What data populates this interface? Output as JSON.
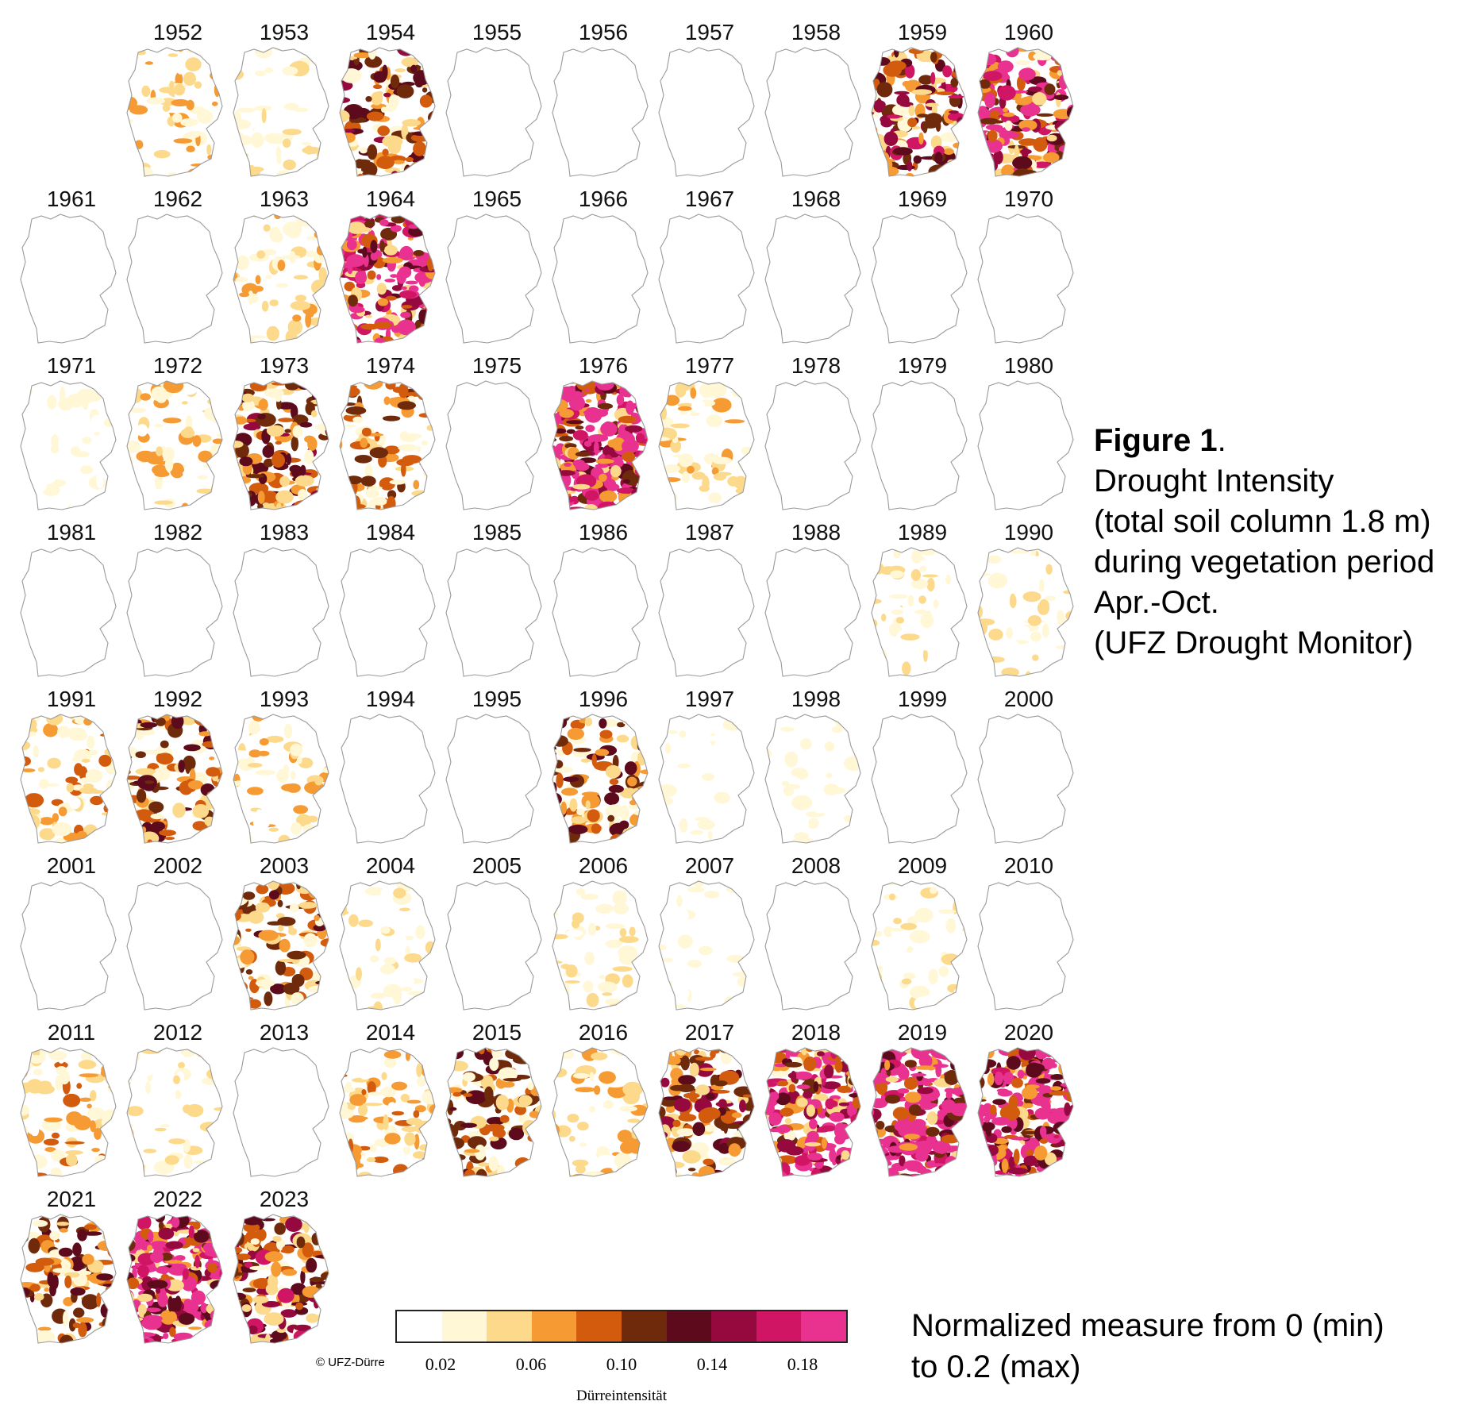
{
  "caption": {
    "figure_label": "Figure 1",
    "figure_label_punct": ".",
    "lines": [
      "Drought Intensity",
      "(total soil column 1.8 m)",
      "during vegetation period",
      "Apr.-Oct.",
      "(UFZ Drought Monitor)"
    ]
  },
  "legend_note": {
    "line1": "Normalized measure from 0 (min)",
    "line2": "to 0.2 (max)"
  },
  "credit": "© UFZ-Dürreintensität",
  "colorbar": {
    "title": "Dürreintensität",
    "ticks": [
      "0.02",
      "0.06",
      "0.10",
      "0.14",
      "0.18"
    ],
    "bin_colors": [
      "#ffffff",
      "#fff7d6",
      "#fcd98b",
      "#f69a34",
      "#d25b0e",
      "#6e2a0b",
      "#5c0a1c",
      "#96093f",
      "#cf1563",
      "#e9328f"
    ]
  },
  "chart_data": {
    "type": "heatmap",
    "title": "Figure 1. Drought Intensity (total soil column 1.8 m) during vegetation period Apr.-Oct. (UFZ Drought Monitor)",
    "scale": {
      "min": 0,
      "max": 0.2,
      "label": "Dürreintensität"
    },
    "years": [
      "1952",
      "1953",
      "1954",
      "1955",
      "1956",
      "1957",
      "1958",
      "1959",
      "1960",
      "1961",
      "1962",
      "1963",
      "1964",
      "1965",
      "1966",
      "1967",
      "1968",
      "1969",
      "1970",
      "1971",
      "1972",
      "1973",
      "1974",
      "1975",
      "1976",
      "1977",
      "1978",
      "1979",
      "1980",
      "1981",
      "1982",
      "1983",
      "1984",
      "1985",
      "1986",
      "1987",
      "1988",
      "1989",
      "1990",
      "1991",
      "1992",
      "1993",
      "1994",
      "1995",
      "1996",
      "1997",
      "1998",
      "1999",
      "2000",
      "2001",
      "2002",
      "2003",
      "2004",
      "2005",
      "2006",
      "2007",
      "2008",
      "2009",
      "2010",
      "2011",
      "2012",
      "2013",
      "2014",
      "2015",
      "2016",
      "2017",
      "2018",
      "2019",
      "2020",
      "2021",
      "2022",
      "2023"
    ],
    "approx_mean_intensity": [
      0.04,
      0.03,
      0.08,
      0.0,
      0.0,
      0.0,
      0.0,
      0.09,
      0.12,
      0.0,
      0.005,
      0.04,
      0.13,
      0.01,
      0.0,
      0.0,
      0.0,
      0.0,
      0.0,
      0.02,
      0.04,
      0.08,
      0.06,
      0.01,
      0.15,
      0.04,
      0.01,
      0.0,
      0.0,
      0.0,
      0.01,
      0.01,
      0.005,
      0.005,
      0.0,
      0.0,
      0.005,
      0.03,
      0.03,
      0.05,
      0.07,
      0.04,
      0.005,
      0.0,
      0.07,
      0.02,
      0.02,
      0.005,
      0.01,
      0.005,
      0.0,
      0.07,
      0.03,
      0.01,
      0.03,
      0.02,
      0.01,
      0.03,
      0.01,
      0.05,
      0.03,
      0.01,
      0.05,
      0.07,
      0.04,
      0.08,
      0.13,
      0.17,
      0.14,
      0.07,
      0.13,
      0.09
    ]
  }
}
